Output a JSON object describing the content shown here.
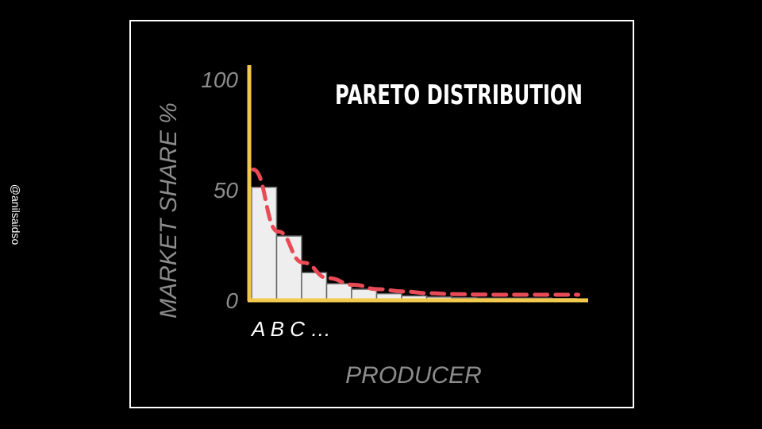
{
  "watermark": "@anilsaidso",
  "chart_data": {
    "type": "bar",
    "title": "PARETO DISTRIBUTION",
    "xlabel": "PRODUCER",
    "ylabel": "MARKET SHARE %",
    "ylim": [
      0,
      100
    ],
    "yticks": [
      "0",
      "50",
      "100"
    ],
    "category_label": "A B C …",
    "values": [
      51,
      29,
      12.5,
      7.5,
      5,
      3,
      2,
      1.5,
      1.2,
      1,
      1,
      1,
      0.8
    ],
    "trend_values": [
      59,
      31,
      17,
      10,
      7,
      5,
      4,
      3.2,
      2.8,
      2.6,
      2.5,
      2.5,
      2.5,
      2.5
    ],
    "grid": false,
    "colors": {
      "bar_fill": "#eeeeee",
      "bar_stroke": "#666666",
      "axis": "#f2c94c",
      "trend": "#e84b55",
      "label": "#8c8c8c",
      "title": "#ffffff"
    }
  }
}
